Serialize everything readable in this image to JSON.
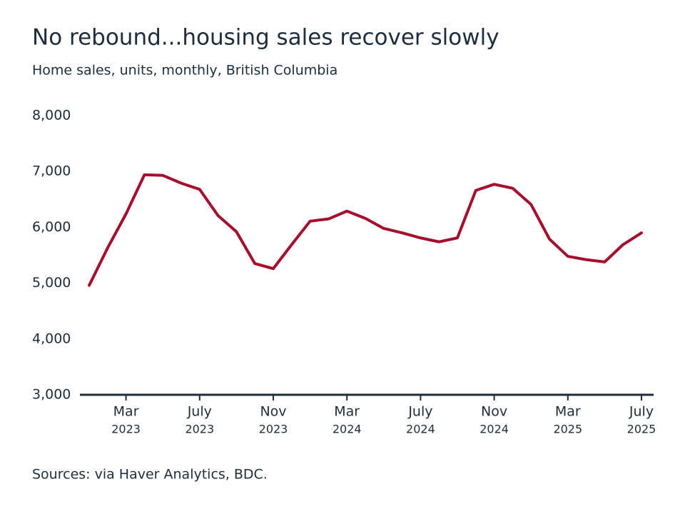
{
  "chart_data": {
    "type": "line",
    "title": "No rebound...housing sales recover slowly",
    "subtitle": "Home sales, units, monthly, British Columbia",
    "source": "Sources: via Haver Analytics, BDC.",
    "categories": [
      null,
      null,
      [
        "Mar",
        "2023"
      ],
      null,
      null,
      null,
      [
        "July",
        "2023"
      ],
      null,
      null,
      null,
      [
        "Nov",
        "2023"
      ],
      null,
      null,
      null,
      [
        "Mar",
        "2024"
      ],
      null,
      null,
      null,
      [
        "July",
        "2024"
      ],
      null,
      null,
      null,
      [
        "Nov",
        "2024"
      ],
      null,
      null,
      null,
      [
        "Mar",
        "2025"
      ],
      null,
      null,
      null,
      [
        "July",
        "2025"
      ]
    ],
    "series": [
      {
        "name": "Home sales",
        "color": "#a50e2d",
        "values": [
          4960,
          5630,
          6240,
          6940,
          6930,
          6790,
          6680,
          6210,
          5920,
          5350,
          5260,
          5690,
          6110,
          6150,
          6290,
          6160,
          5980,
          5900,
          5810,
          5740,
          5810,
          6660,
          6770,
          6700,
          6410,
          5790,
          5480,
          5420,
          5380,
          5690,
          5900
        ]
      }
    ],
    "ylim": [
      3000,
      8000
    ],
    "yticks": [
      {
        "value": 3000,
        "label": "3,000"
      },
      {
        "value": 4000,
        "label": "4,000"
      },
      {
        "value": 5000,
        "label": "5,000"
      },
      {
        "value": 6000,
        "label": "6,000"
      },
      {
        "value": 7000,
        "label": "7,000"
      },
      {
        "value": 8000,
        "label": "8,000"
      }
    ],
    "grid": false
  }
}
